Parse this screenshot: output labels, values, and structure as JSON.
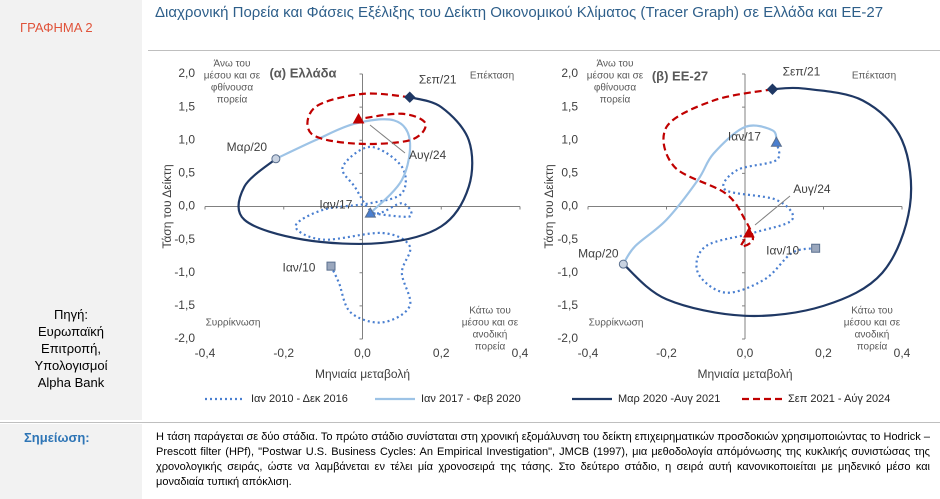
{
  "label": "ΓΡΑΦΗΜΑ 2",
  "title": "Διαχρονική Πορεία και Φάσεις Εξέλιξης του Δείκτη Οικονομικού Κλίματος (Tracer Graph) σε Ελλάδα και ΕΕ-27",
  "source": [
    "Πηγή:",
    "Ευρωπαϊκή",
    "Επιτροπή,",
    "Υπολογισμοί",
    "Alpha Bank"
  ],
  "note_label": "Σημείωση:",
  "note": "Η τάση παράγεται σε δύο στάδια. Το πρώτο στάδιο συνίσταται στη χρονική εξομάλυνση του δείκτη επιχειρηματικών προσδοκιών χρησιμοποιώντας το Hodrick –Prescott filter (HPf), \"Postwar U.S. Business Cycles: An Empirical Investigation\", JMCB (1997), μια μεθοδολογία απόμόνωσης της κυκλικής συνιστώσας της χρονολογικής σειράς, ώστε να λαμβάνεται εν τέλει μία χρονοσειρά της τάσης. Στο δεύτερο στάδιο, η σειρά αυτή κανονικοποιείται με μηδενικό μέσο και μοναδιαία τυπική απόκλιση.",
  "chart_data": [
    {
      "type": "line",
      "title": "(α) Ελλάδα",
      "xlabel": "Μηνιαία μεταβολή",
      "ylabel": "Τάση του Δείκτη",
      "xlim": [
        -0.4,
        0.4
      ],
      "ylim": [
        -2,
        2
      ],
      "xticks": [
        {
          "value": -0.4,
          "label": "-0,4"
        },
        {
          "value": -0.2,
          "label": "-0,2"
        },
        {
          "value": 0,
          "label": "0,0"
        },
        {
          "value": 0.2,
          "label": "0,2"
        },
        {
          "value": 0.4,
          "label": "0,4"
        }
      ],
      "yticks": [
        {
          "value": 2,
          "label": "2,0"
        },
        {
          "value": 1.5,
          "label": "1,5"
        },
        {
          "value": 1,
          "label": "1,0"
        },
        {
          "value": 0.5,
          "label": "0,5"
        },
        {
          "value": 0,
          "label": "0,0"
        },
        {
          "value": -0.5,
          "label": "-0,5"
        },
        {
          "value": -1,
          "label": "-1,0"
        },
        {
          "value": -1.5,
          "label": "-1,5"
        },
        {
          "value": -2,
          "label": "-2,0"
        }
      ],
      "quadrant_labels": {
        "top_left": [
          "Άνω του",
          "μέσου και σε",
          "φθίνουσα",
          "πορεία"
        ],
        "top_right": [
          "Επέκταση"
        ],
        "bottom_left": [
          "Συρρίκνωση"
        ],
        "bottom_right": [
          "Κάτω του",
          "μέσου και σε",
          "ανοδική",
          "πορεία"
        ]
      },
      "annotations": [
        "Σεπ/21",
        "Αυγ/24",
        "Ιαν/17",
        "Μαρ/20",
        "Ιαν/10"
      ],
      "series": [
        {
          "name": "Ιαν 2010 - Δεκ 2016",
          "color": "#4a7fd0",
          "dash": "dotted",
          "x": [
            -0.08,
            -0.06,
            -0.03,
            0.05,
            0.12,
            0.1,
            0.12,
            0.05,
            -0.1,
            -0.17,
            -0.1,
            0.02,
            0.1,
            0.1,
            0.02,
            -0.05,
            -0.02,
            0.03,
            0.1,
            0.12,
            0.02
          ],
          "values": [
            -0.9,
            -1.15,
            -1.6,
            -1.75,
            -1.5,
            -1.0,
            -0.6,
            -0.4,
            -0.5,
            -0.3,
            -0.05,
            0.05,
            0.2,
            0.6,
            0.9,
            0.6,
            0.3,
            -0.1,
            0.05,
            -0.15,
            -0.1
          ]
        },
        {
          "name": "Ιαν 2017 - Φεβ 2020",
          "color": "#9dc3e6",
          "dash": "solid",
          "x": [
            0.02,
            0.1,
            0.12,
            0.08,
            -0.02,
            -0.12,
            -0.22
          ],
          "values": [
            -0.1,
            0.4,
            1.0,
            1.3,
            1.25,
            1.0,
            0.72
          ]
        },
        {
          "name": "Μαρ 2020 -Αυγ 2021",
          "color": "#1f3864",
          "dash": "solid",
          "x": [
            -0.22,
            -0.3,
            -0.3,
            -0.15,
            0.05,
            0.2,
            0.27,
            0.27,
            0.2,
            0.12
          ],
          "values": [
            0.72,
            0.3,
            -0.2,
            -0.5,
            -0.55,
            -0.3,
            0.3,
            1.0,
            1.5,
            1.65
          ]
        },
        {
          "name": "Σεπ 2021 - Αύγ 2024",
          "color": "#c00000",
          "dash": "dashed",
          "x": [
            0.12,
            0.0,
            -0.12,
            -0.13,
            -0.02,
            0.12,
            0.16,
            0.1,
            -0.01
          ],
          "values": [
            1.65,
            1.7,
            1.5,
            1.1,
            0.95,
            1.0,
            1.25,
            1.4,
            1.32
          ]
        }
      ]
    },
    {
      "type": "line",
      "title": "(β) ΕΕ-27",
      "xlabel": "Μηνιαία μεταβολή",
      "ylabel": "Τάση του Δείκτη",
      "xlim": [
        -0.4,
        0.4
      ],
      "ylim": [
        -2,
        2
      ],
      "xticks": [
        {
          "value": -0.4,
          "label": "-0,4"
        },
        {
          "value": -0.2,
          "label": "-0,2"
        },
        {
          "value": 0,
          "label": "0,0"
        },
        {
          "value": 0.2,
          "label": "0,2"
        },
        {
          "value": 0.4,
          "label": "0,4"
        }
      ],
      "yticks": [
        {
          "value": 2,
          "label": "2,0"
        },
        {
          "value": 1.5,
          "label": "1,5"
        },
        {
          "value": 1,
          "label": "1,0"
        },
        {
          "value": 0.5,
          "label": "0,5"
        },
        {
          "value": 0,
          "label": "0,0"
        },
        {
          "value": -0.5,
          "label": "-0,5"
        },
        {
          "value": -1,
          "label": "-1,0"
        },
        {
          "value": -1.5,
          "label": "-1,5"
        },
        {
          "value": -2,
          "label": "-2,0"
        }
      ],
      "quadrant_labels": {
        "top_left": [
          "Άνω του",
          "μέσου και σε",
          "φθίνουσα",
          "πορεία"
        ],
        "top_right": [
          "Επέκταση"
        ],
        "bottom_left": [
          "Συρρίκνωση"
        ],
        "bottom_right": [
          "Κάτω του",
          "μέσου και σε",
          "ανοδική",
          "πορεία"
        ]
      },
      "annotations": [
        "Σεπ/21",
        "Αυγ/24",
        "Ιαν/17",
        "Μαρ/20",
        "Ιαν/10"
      ],
      "series": [
        {
          "name": "Ιαν 2010 - Δεκ 2016",
          "color": "#4a7fd0",
          "dash": "dotted",
          "x": [
            0.18,
            0.12,
            0.05,
            -0.05,
            -0.12,
            -0.1,
            0.02,
            0.12,
            0.08,
            -0.05,
            -0.02,
            0.08,
            0.08
          ],
          "values": [
            -0.63,
            -0.7,
            -1.1,
            -1.3,
            -1.0,
            -0.6,
            -0.4,
            -0.2,
            0.1,
            0.25,
            0.55,
            0.7,
            0.97
          ]
        },
        {
          "name": "Ιαν 2017 - Φεβ 2020",
          "color": "#9dc3e6",
          "dash": "solid",
          "x": [
            0.08,
            0.07,
            0.0,
            -0.08,
            -0.12,
            -0.2,
            -0.28,
            -0.31
          ],
          "values": [
            0.97,
            1.15,
            1.2,
            0.8,
            0.4,
            -0.2,
            -0.6,
            -0.87
          ]
        },
        {
          "name": "Μαρ 2020 -Αυγ 2021",
          "color": "#1f3864",
          "dash": "solid",
          "x": [
            -0.31,
            -0.2,
            0.0,
            0.2,
            0.35,
            0.42,
            0.4,
            0.3,
            0.15,
            0.07
          ],
          "values": [
            -0.87,
            -1.4,
            -1.65,
            -1.5,
            -1.0,
            0.0,
            1.0,
            1.6,
            1.78,
            1.77
          ]
        },
        {
          "name": "Σεπ 2021 - Αύγ 2024",
          "color": "#c00000",
          "dash": "dashed",
          "x": [
            0.07,
            -0.08,
            -0.2,
            -0.18,
            -0.05,
            0.0,
            0.02,
            -0.01,
            0.01
          ],
          "values": [
            1.77,
            1.6,
            1.2,
            0.6,
            0.2,
            -0.2,
            -0.5,
            -0.6,
            -0.4
          ]
        }
      ]
    }
  ]
}
